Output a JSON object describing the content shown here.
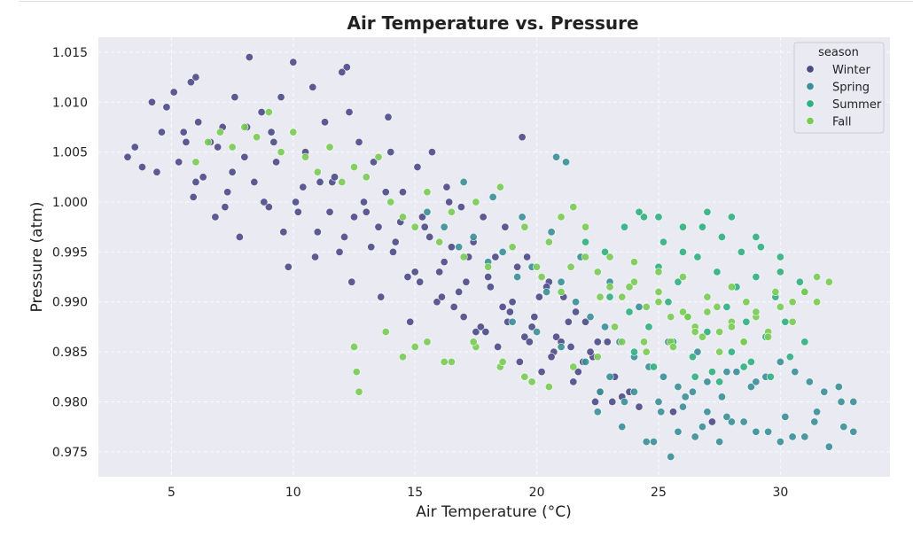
{
  "chart_data": {
    "type": "scatter",
    "title": "Air Temperature vs. Pressure",
    "xlabel": "Air Temperature (°C)",
    "ylabel": "Pressure (atm)",
    "xlim": [
      2.0,
      34.5
    ],
    "ylim": [
      0.9725,
      1.0165
    ],
    "x_ticks": [
      5,
      10,
      15,
      20,
      25,
      30
    ],
    "y_ticks": [
      0.975,
      0.98,
      0.985,
      0.99,
      0.995,
      1.0,
      1.005,
      1.01,
      1.015
    ],
    "x_tick_labels": [
      "5",
      "10",
      "15",
      "20",
      "25",
      "30"
    ],
    "y_tick_labels": [
      "0.975",
      "0.980",
      "0.985",
      "0.990",
      "0.995",
      "1.000",
      "1.005",
      "1.010",
      "1.015"
    ],
    "grid": true,
    "legend": {
      "title": "season",
      "position": "top-right",
      "entries": [
        "Winter",
        "Spring",
        "Summer",
        "Fall"
      ]
    },
    "series": [
      {
        "name": "Winter",
        "color": "#4b4a87",
        "x": [
          3.2,
          3.5,
          3.8,
          4.2,
          4.4,
          4.6,
          5.1,
          5.3,
          5.6,
          5.8,
          6.0,
          6.1,
          5.9,
          6.3,
          6.6,
          6.8,
          7.1,
          7.3,
          7.6,
          7.8,
          8.0,
          8.2,
          8.4,
          8.7,
          9.0,
          9.2,
          9.5,
          9.8,
          10.0,
          10.2,
          10.5,
          10.8,
          11.0,
          11.3,
          11.6,
          11.9,
          12.2,
          12.4,
          12.7,
          13.0,
          13.3,
          13.6,
          13.9,
          14.2,
          14.5,
          14.8,
          15.1,
          15.4,
          15.7,
          16.0,
          16.3,
          16.6,
          16.9,
          17.2,
          17.5,
          17.8,
          18.1,
          18.4,
          18.7,
          19.0,
          19.3,
          19.6,
          19.9,
          20.2,
          20.5,
          20.8,
          21.1,
          21.4,
          21.7,
          22.0,
          22.3,
          22.6,
          22.9,
          23.2,
          23.5,
          6.0,
          7.5,
          8.8,
          9.6,
          10.9,
          11.7,
          12.5,
          13.2,
          13.8,
          14.4,
          15.0,
          15.6,
          16.2,
          16.8,
          17.4,
          18.0,
          18.6,
          19.2,
          19.8,
          20.4,
          21.0,
          21.6,
          22.2,
          8.1,
          9.3,
          10.4,
          11.5,
          12.1,
          12.9,
          13.5,
          14.1,
          14.7,
          15.3,
          15.9,
          16.5,
          17.1,
          17.7,
          18.3,
          18.9,
          19.5,
          20.1,
          20.7,
          21.3,
          21.9,
          22.5,
          12.0,
          12.3,
          15.2,
          16.1,
          17.0,
          17.9,
          18.8,
          19.7,
          20.6,
          21.5,
          22.4,
          23.1,
          4.8,
          5.5,
          6.9,
          7.2,
          9.1,
          10.1,
          11.1,
          14.0,
          16.4,
          19.4,
          23.8,
          24.2,
          25.6,
          27.2
        ],
        "y": [
          1.0045,
          1.0055,
          1.0035,
          1.01,
          1.003,
          1.007,
          1.011,
          1.004,
          1.006,
          1.012,
          1.002,
          1.008,
          1.0005,
          1.0025,
          1.006,
          0.9985,
          1.0075,
          1.001,
          1.0105,
          0.9965,
          1.0045,
          1.0145,
          1.002,
          1.009,
          0.9995,
          1.006,
          1.0105,
          0.9935,
          1.014,
          0.999,
          1.005,
          1.0115,
          0.997,
          1.008,
          1.002,
          0.995,
          1.0135,
          0.992,
          1.006,
          0.999,
          1.004,
          0.9905,
          1.0085,
          0.996,
          1.001,
          0.988,
          1.0035,
          0.9975,
          1.005,
          0.993,
          1.0015,
          0.9895,
          0.9995,
          0.9945,
          0.987,
          0.9985,
          0.9915,
          0.9855,
          0.9975,
          0.99,
          0.984,
          0.9945,
          0.9885,
          0.983,
          0.992,
          0.9865,
          0.9905,
          0.9855,
          0.983,
          0.988,
          0.9845,
          0.981,
          0.986,
          0.9825,
          0.9805,
          1.0125,
          1.003,
          1.0,
          0.997,
          0.9945,
          1.0025,
          0.9985,
          0.9955,
          1.001,
          0.998,
          0.993,
          0.9965,
          0.994,
          0.991,
          0.996,
          0.9925,
          0.9895,
          0.9935,
          0.9875,
          0.9915,
          0.986,
          0.989,
          0.985,
          1.0075,
          1.004,
          1.0015,
          0.999,
          0.9965,
          1.0,
          0.9975,
          0.995,
          0.9925,
          0.9985,
          0.99,
          0.9955,
          0.992,
          0.9875,
          0.9945,
          0.989,
          0.9865,
          0.9905,
          0.985,
          0.988,
          0.984,
          0.986,
          1.013,
          1.009,
          0.992,
          0.9905,
          0.9885,
          0.987,
          0.988,
          0.986,
          0.9845,
          0.982,
          0.98,
          0.98,
          1.0095,
          1.007,
          1.0055,
          0.9995,
          1.007,
          1.0,
          1.002,
          1.005,
          1.0,
          1.0065,
          0.981,
          0.9795,
          0.979,
          0.978
        ]
      },
      {
        "name": "Spring",
        "color": "#3a8f98",
        "x": [
          15.5,
          16.2,
          16.8,
          17.4,
          18.0,
          18.6,
          19.2,
          19.8,
          20.4,
          21.0,
          21.6,
          22.2,
          22.8,
          23.4,
          24.0,
          24.6,
          25.2,
          25.8,
          26.4,
          27.0,
          27.6,
          28.2,
          28.8,
          29.4,
          30.0,
          30.6,
          31.2,
          31.8,
          32.4,
          33.0,
          17.0,
          18.2,
          19.4,
          20.6,
          21.8,
          23.0,
          24.2,
          25.4,
          26.6,
          27.8,
          29.0,
          30.2,
          31.4,
          32.6,
          19.0,
          20.0,
          21.0,
          22.0,
          23.0,
          24.0,
          25.0,
          26.0,
          27.0,
          28.0,
          29.0,
          30.0,
          31.0,
          32.0,
          33.0,
          22.5,
          23.5,
          24.5,
          25.5,
          26.5,
          27.5,
          28.5,
          29.5,
          30.5,
          31.5,
          32.5,
          20.8,
          21.2,
          24.8,
          25.8,
          26.8,
          27.8,
          22.6,
          23.6,
          25.1,
          26.1
        ],
        "y": [
          0.999,
          0.9975,
          0.9955,
          0.9965,
          0.994,
          0.995,
          0.9925,
          0.9935,
          0.991,
          0.992,
          0.99,
          0.9885,
          0.9875,
          0.986,
          0.9845,
          0.9835,
          0.9825,
          0.9815,
          0.981,
          0.982,
          0.9805,
          0.983,
          0.9815,
          0.9825,
          0.984,
          0.983,
          0.982,
          0.981,
          0.9815,
          0.98,
          1.002,
          1.0005,
          0.9985,
          0.997,
          0.9945,
          0.992,
          0.9895,
          0.986,
          0.985,
          0.983,
          0.982,
          0.9785,
          0.978,
          0.9775,
          0.988,
          0.987,
          0.9855,
          0.984,
          0.9825,
          0.981,
          0.98,
          0.9795,
          0.979,
          0.978,
          0.977,
          0.976,
          0.9765,
          0.9755,
          0.977,
          0.979,
          0.9775,
          0.976,
          0.9745,
          0.9765,
          0.976,
          0.978,
          0.977,
          0.9765,
          0.979,
          0.98,
          1.0045,
          1.004,
          0.976,
          0.977,
          0.9775,
          0.9785,
          0.981,
          0.98,
          0.979,
          0.9805
        ]
      },
      {
        "name": "Summer",
        "color": "#2fb07f",
        "x": [
          22.0,
          22.8,
          23.6,
          24.4,
          25.2,
          26.0,
          26.8,
          27.6,
          28.4,
          29.2,
          30.0,
          30.8,
          23.0,
          23.8,
          24.6,
          25.4,
          26.2,
          27.0,
          27.8,
          28.6,
          29.4,
          30.2,
          31.0,
          24.0,
          24.8,
          25.6,
          26.4,
          27.2,
          28.0,
          28.8,
          29.6,
          30.4,
          25.0,
          25.8,
          26.6,
          27.4,
          28.2,
          29.0,
          29.8,
          24.2,
          25.0,
          26.0,
          27.0,
          28.0,
          29.0,
          30.0,
          31.0,
          26.5,
          27.5,
          28.5
        ],
        "y": [
          0.996,
          0.995,
          0.9975,
          0.9985,
          0.996,
          0.995,
          0.9975,
          0.9965,
          0.995,
          0.9955,
          0.993,
          0.992,
          0.9905,
          0.989,
          0.9875,
          0.99,
          0.9885,
          0.987,
          0.9895,
          0.988,
          0.9865,
          0.988,
          0.986,
          0.985,
          0.9835,
          0.986,
          0.9845,
          0.983,
          0.985,
          0.984,
          0.9825,
          0.9845,
          0.9935,
          0.992,
          0.9945,
          0.993,
          0.9915,
          0.9925,
          0.9905,
          0.999,
          0.9985,
          0.9975,
          0.999,
          0.9985,
          0.9965,
          0.9945,
          0.991,
          0.9825,
          0.982,
          0.9835
        ]
      },
      {
        "name": "Fall",
        "color": "#7acb53",
        "x": [
          6.0,
          6.5,
          7.0,
          7.5,
          8.0,
          8.5,
          9.0,
          9.5,
          10.0,
          10.5,
          11.0,
          11.5,
          12.0,
          12.5,
          13.0,
          13.5,
          14.0,
          14.5,
          15.0,
          15.5,
          16.0,
          16.5,
          17.0,
          17.5,
          18.0,
          18.5,
          19.0,
          19.5,
          20.0,
          20.5,
          21.0,
          21.5,
          22.0,
          22.5,
          23.0,
          23.5,
          24.0,
          24.5,
          25.0,
          25.5,
          26.0,
          26.5,
          27.0,
          27.5,
          28.0,
          28.5,
          29.0,
          29.5,
          30.0,
          30.5,
          31.0,
          31.5,
          32.0,
          12.5,
          12.7,
          14.5,
          15.5,
          16.5,
          17.5,
          18.5,
          19.5,
          20.5,
          21.5,
          22.5,
          23.5,
          24.5,
          25.5,
          26.5,
          27.5,
          28.5,
          29.5,
          30.5,
          31.5,
          20.2,
          21.4,
          22.6,
          23.8,
          25.0,
          26.2,
          27.4,
          28.6,
          29.8,
          21.0,
          22.0,
          23.0,
          24.0,
          25.0,
          26.0,
          27.0,
          28.0,
          29.0,
          23.2,
          24.4,
          25.6,
          26.8,
          28.0,
          12.6,
          13.8,
          15.0,
          16.2,
          17.4,
          18.6,
          19.8
        ],
        "y": [
          1.004,
          1.006,
          1.007,
          1.0055,
          1.0075,
          1.0065,
          1.009,
          1.005,
          1.007,
          1.0045,
          1.003,
          1.0055,
          1.002,
          1.0035,
          1.0025,
          1.0045,
          1.0,
          0.9985,
          0.9975,
          1.001,
          0.996,
          0.999,
          0.9945,
          1.0,
          0.9935,
          1.0015,
          0.9955,
          0.9975,
          0.9935,
          0.996,
          0.991,
          0.9995,
          0.9945,
          0.993,
          0.9915,
          0.9905,
          0.992,
          0.9895,
          0.991,
          0.9885,
          0.989,
          0.9875,
          0.989,
          0.987,
          0.988,
          0.986,
          0.9885,
          0.987,
          0.9895,
          0.99,
          0.991,
          0.9925,
          0.992,
          0.9855,
          0.981,
          0.9845,
          0.986,
          0.984,
          0.9855,
          0.9835,
          0.9825,
          0.9815,
          0.9835,
          0.9845,
          0.986,
          0.985,
          0.986,
          0.987,
          0.985,
          0.986,
          0.9865,
          0.988,
          0.99,
          0.9925,
          0.9935,
          0.9905,
          0.9915,
          0.99,
          0.9885,
          0.9895,
          0.99,
          0.991,
          0.9985,
          0.9975,
          0.9945,
          0.994,
          0.993,
          0.9925,
          0.9905,
          0.9915,
          0.989,
          0.9875,
          0.986,
          0.9855,
          0.9865,
          0.9875,
          0.983,
          0.987,
          0.9855,
          0.984,
          0.986,
          0.984,
          0.982
        ]
      }
    ]
  }
}
